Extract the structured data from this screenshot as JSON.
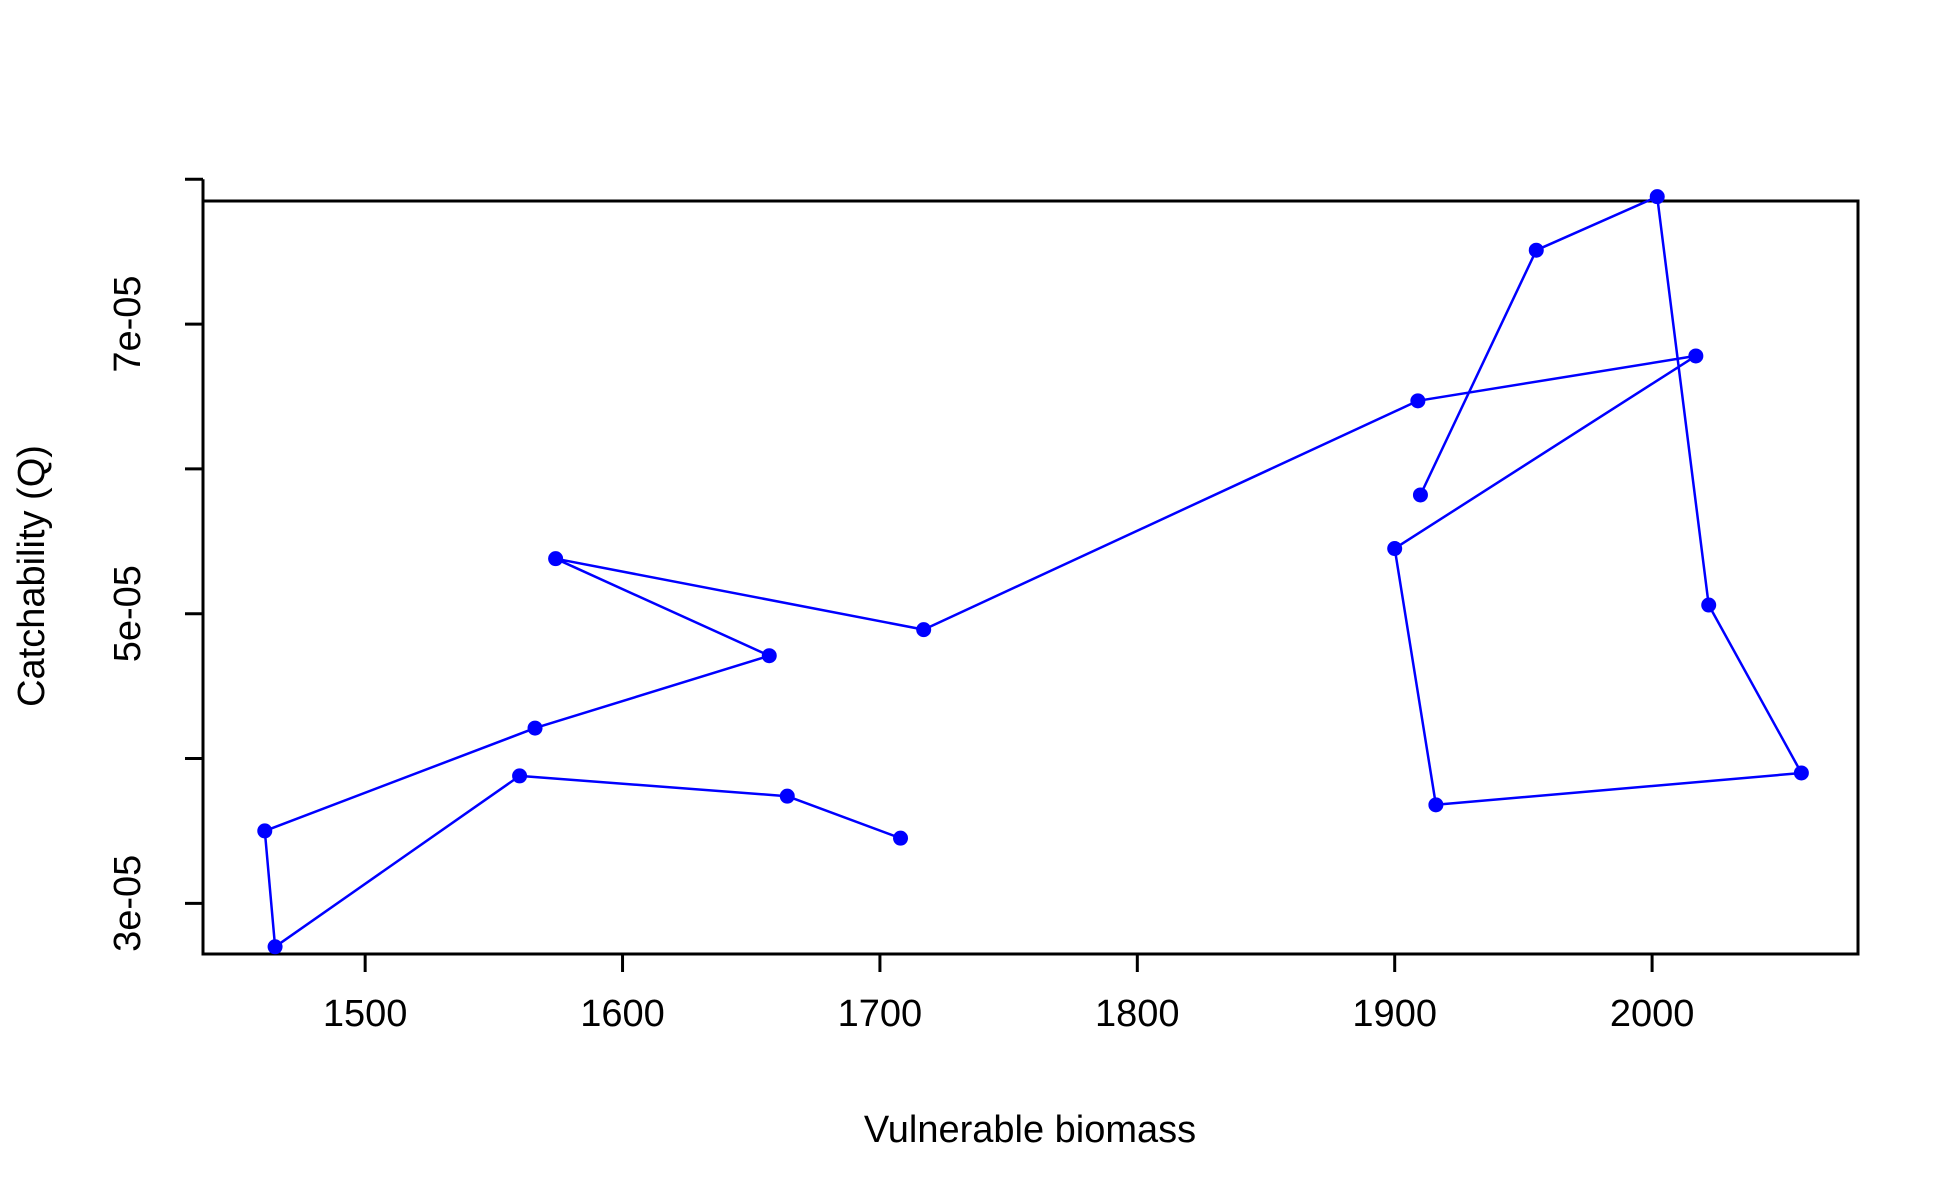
{
  "chart_data": {
    "type": "line",
    "title": "",
    "xlabel": "Vulnerable biomass",
    "ylabel": "Catchability (Q)",
    "xlim": [
      1437,
      2080
    ],
    "ylim": [
      2.65e-05,
      7.85e-05
    ],
    "x_ticks": [
      1500,
      1600,
      1700,
      1800,
      1900,
      2000
    ],
    "x_tick_labels": [
      "1500",
      "1600",
      "1700",
      "1800",
      "1900",
      "2000"
    ],
    "y_ticks": [
      3e-05,
      4e-05,
      5e-05,
      6e-05,
      7e-05,
      8e-05
    ],
    "y_tick_labels": [
      "3e-05",
      "",
      "5e-05",
      "",
      "7e-05",
      ""
    ],
    "grid": false,
    "series": [
      {
        "color": "#0000ff",
        "marker": "filled-circle",
        "points": [
          [
            1708,
            3.45e-05
          ],
          [
            1664,
            3.74e-05
          ],
          [
            1560,
            3.88e-05
          ],
          [
            1465,
            2.7e-05
          ],
          [
            1461,
            3.5e-05
          ],
          [
            1566,
            4.21e-05
          ],
          [
            1657,
            4.71e-05
          ],
          [
            1574,
            5.38e-05
          ],
          [
            1717,
            4.89e-05
          ],
          [
            1909,
            6.47e-05
          ],
          [
            2017,
            6.78e-05
          ],
          [
            1900,
            5.45e-05
          ],
          [
            1916,
            3.68e-05
          ],
          [
            2058,
            3.9e-05
          ],
          [
            2022,
            5.06e-05
          ],
          [
            2002,
            7.88e-05
          ],
          [
            1955,
            7.51e-05
          ],
          [
            1910,
            5.82e-05
          ]
        ]
      }
    ]
  }
}
